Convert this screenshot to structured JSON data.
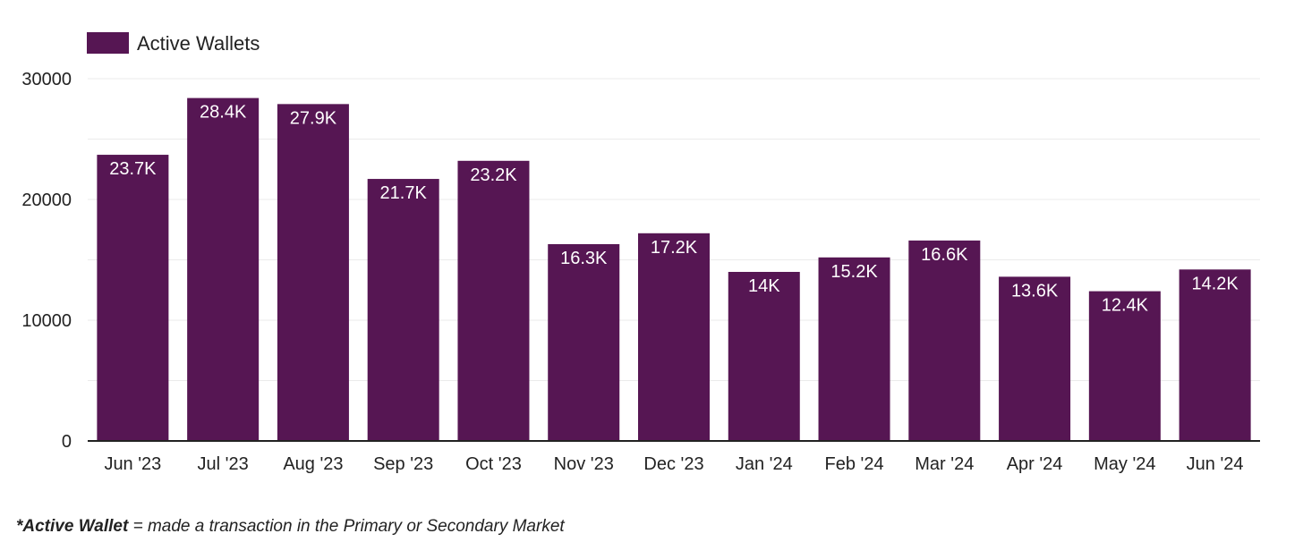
{
  "chart_data": {
    "type": "bar",
    "title": "",
    "xlabel": "",
    "ylabel": "",
    "legend": {
      "position": "top-left",
      "entries": [
        "Active Wallets"
      ]
    },
    "grid": true,
    "ylim": [
      0,
      30000
    ],
    "yticks": [
      "0",
      "10000",
      "20000",
      "30000"
    ],
    "categories": [
      "Jun '23",
      "Jul '23",
      "Aug '23",
      "Sep '23",
      "Oct '23",
      "Nov '23",
      "Dec '23",
      "Jan '24",
      "Feb '24",
      "Mar '24",
      "Apr '24",
      "May '24",
      "Jun '24"
    ],
    "series": [
      {
        "name": "Active Wallets",
        "color": "#561653",
        "values": [
          23700,
          28400,
          27900,
          21700,
          23200,
          16300,
          17200,
          14000,
          15200,
          16600,
          13600,
          12400,
          14200
        ],
        "labels": [
          "23.7K",
          "28.4K",
          "27.9K",
          "21.7K",
          "23.2K",
          "16.3K",
          "17.2K",
          "14K",
          "15.2K",
          "16.6K",
          "13.6K",
          "12.4K",
          "14.2K"
        ]
      }
    ]
  },
  "footnote": {
    "bold": "*Active Wallet",
    "text": " = made a transaction in the Primary or Secondary Market"
  },
  "colors": {
    "bar": "#561653",
    "grid": "#ebebeb",
    "axis": "#222222",
    "label": "#ffffff"
  }
}
